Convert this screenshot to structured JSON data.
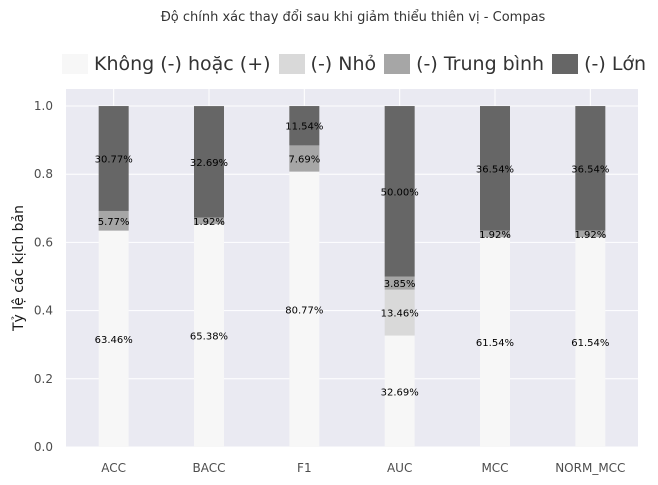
{
  "chart_data": {
    "type": "bar",
    "stacked": true,
    "title": "Độ chính xác thay đổi sau khi giảm thiểu thiên vị - Compas",
    "ylabel": "Tỷ lệ các kịch bản",
    "xlabel": "",
    "ylim": [
      0,
      1.05
    ],
    "yticks": [
      0.0,
      0.2,
      0.4,
      0.6,
      0.8,
      1.0
    ],
    "ytick_labels": [
      "0.0",
      "0.2",
      "0.4",
      "0.6",
      "0.8",
      "1.0"
    ],
    "grid": true,
    "legend_position": "top",
    "categories": [
      "ACC",
      "BACC",
      "F1",
      "AUC",
      "MCC",
      "NORM_MCC"
    ],
    "series": [
      {
        "name": "Không (-) hoặc (+)",
        "color": "#f7f7f7",
        "values": [
          0.6346,
          0.6538,
          0.8077,
          0.3269,
          0.6154,
          0.6154
        ],
        "labels": [
          "63.46%",
          "65.38%",
          "80.77%",
          "32.69%",
          "61.54%",
          "61.54%"
        ]
      },
      {
        "name": "(-) Nhỏ",
        "color": "#d9d9d9",
        "values": [
          0.0,
          0.0,
          0.0,
          0.1346,
          0.0,
          0.0
        ],
        "labels": [
          "",
          "",
          "",
          "13.46%",
          "",
          ""
        ]
      },
      {
        "name": "(-) Trung bình",
        "color": "#a6a6a6",
        "values": [
          0.0577,
          0.0192,
          0.0769,
          0.0385,
          0.0192,
          0.0192
        ],
        "labels": [
          "5.77%",
          "1.92%",
          "7.69%",
          "3.85%",
          "1.92%",
          "1.92%"
        ]
      },
      {
        "name": "(-) Lớn",
        "color": "#666666",
        "values": [
          0.3077,
          0.3269,
          0.1154,
          0.5,
          0.3654,
          0.3654
        ],
        "labels": [
          "30.77%",
          "32.69%",
          "11.54%",
          "50.00%",
          "36.54%",
          "36.54%"
        ]
      }
    ],
    "colors": {
      "plot_background": "#eaeaf2",
      "grid": "#ffffff"
    }
  }
}
